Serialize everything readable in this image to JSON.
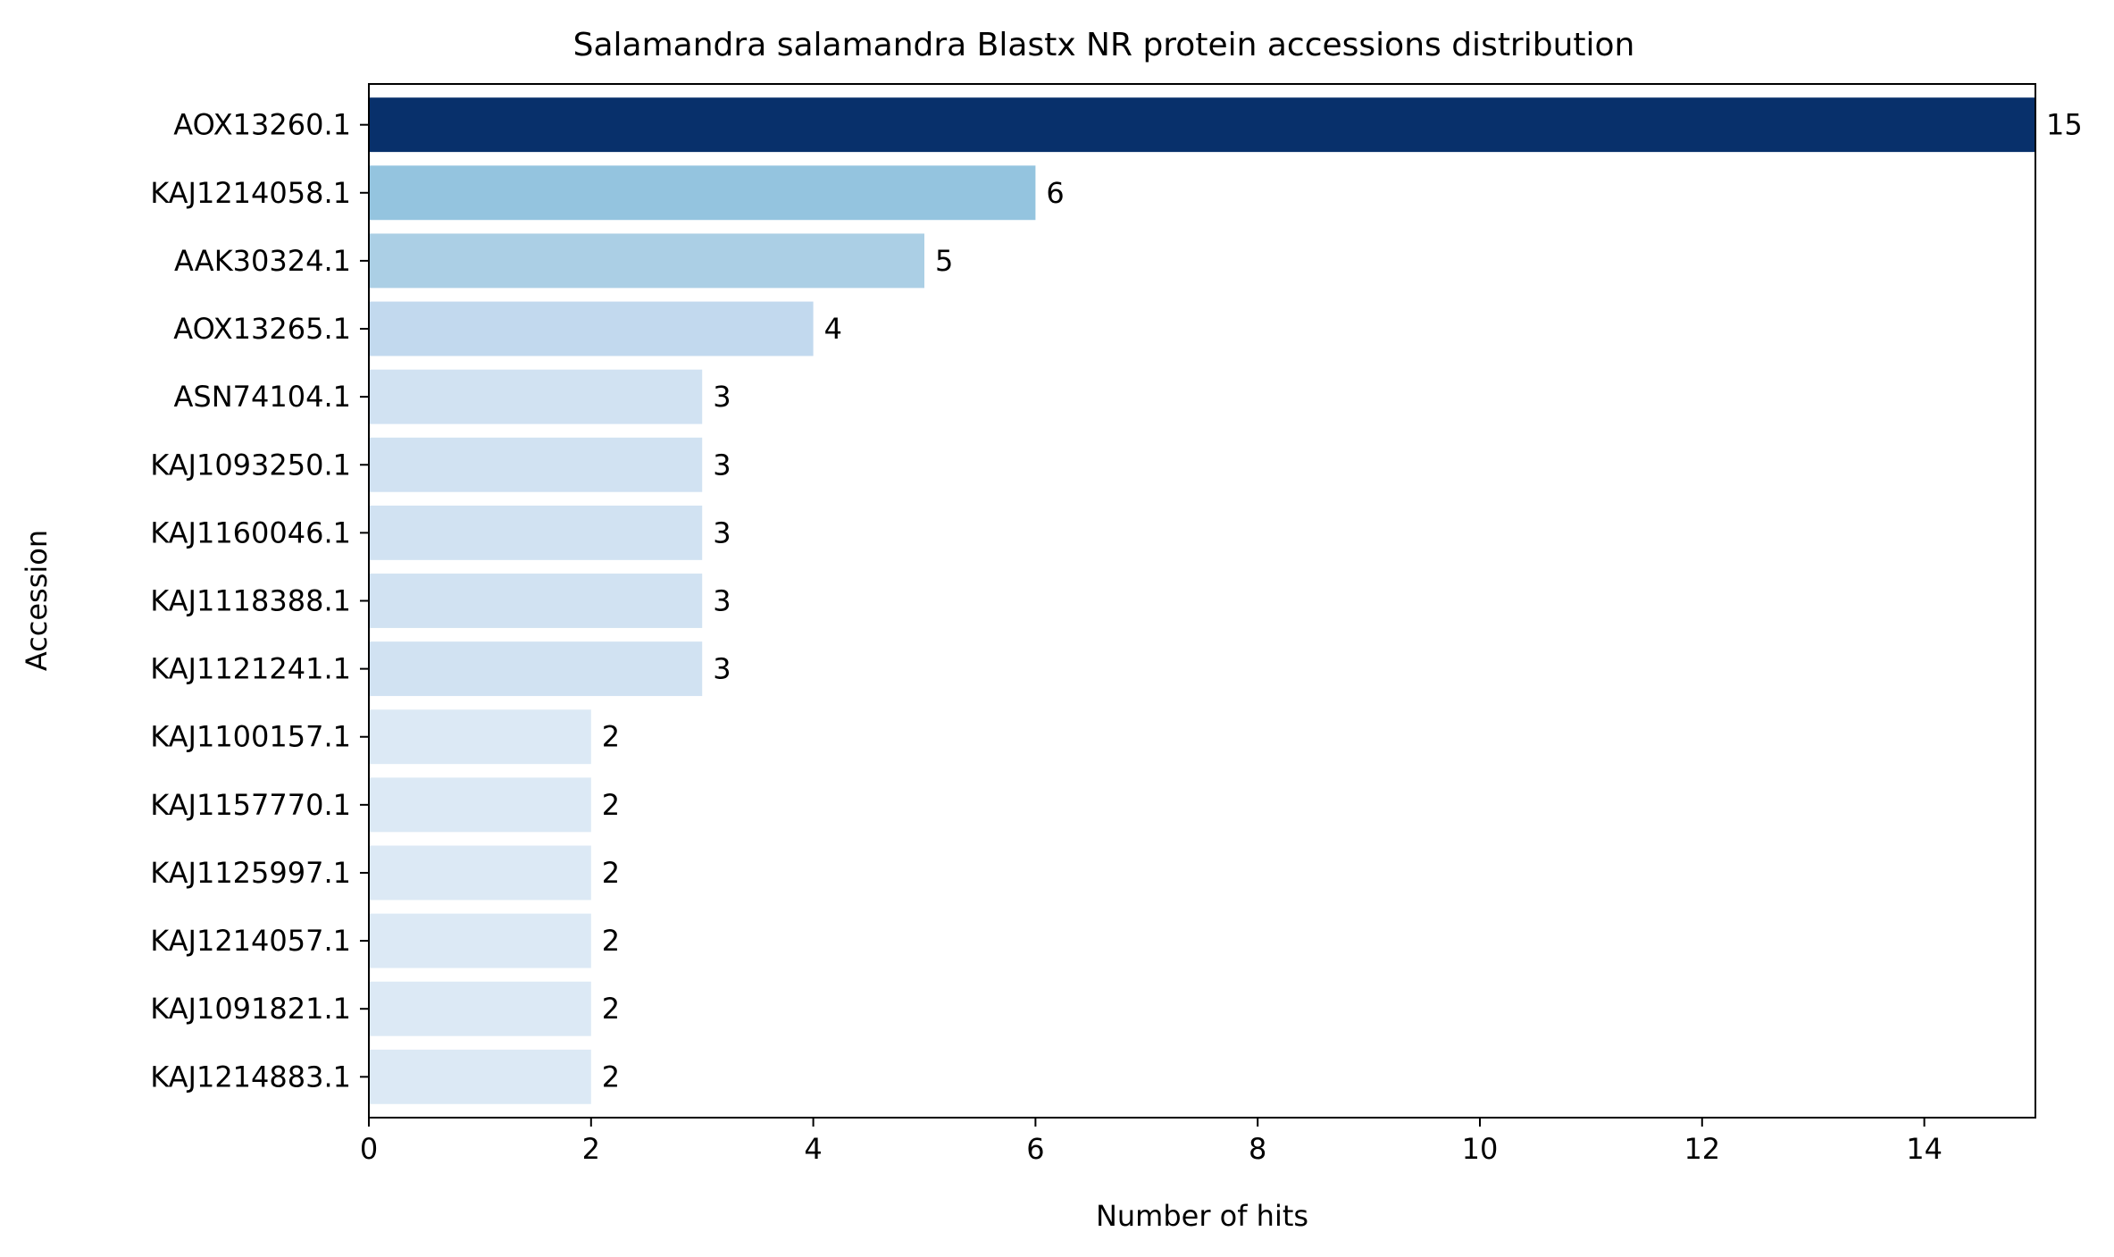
{
  "chart_data": {
    "type": "bar",
    "orientation": "horizontal",
    "title": "Salamandra salamandra Blastx NR protein accessions distribution",
    "xlabel": "Number of hits",
    "ylabel": "Accession",
    "xlim": [
      0,
      15
    ],
    "x_ticks": [
      0,
      2,
      4,
      6,
      8,
      10,
      12,
      14
    ],
    "grid": false,
    "legend": "none",
    "categories": [
      "AOX13260.1",
      "KAJ1214058.1",
      "AAK30324.1",
      "AOX13265.1",
      "ASN74104.1",
      "KAJ1093250.1",
      "KAJ1160046.1",
      "KAJ1118388.1",
      "KAJ1121241.1",
      "KAJ1100157.1",
      "KAJ1157770.1",
      "KAJ1125997.1",
      "KAJ1214057.1",
      "KAJ1091821.1",
      "KAJ1214883.1"
    ],
    "values": [
      15,
      6,
      5,
      4,
      3,
      3,
      3,
      3,
      3,
      2,
      2,
      2,
      2,
      2,
      2
    ],
    "colors": {
      "15": "#08306b",
      "6": "#94c4df",
      "5": "#abcfe5",
      "4": "#c2d9ee",
      "3": "#d1e2f2",
      "2": "#dce9f5"
    }
  }
}
